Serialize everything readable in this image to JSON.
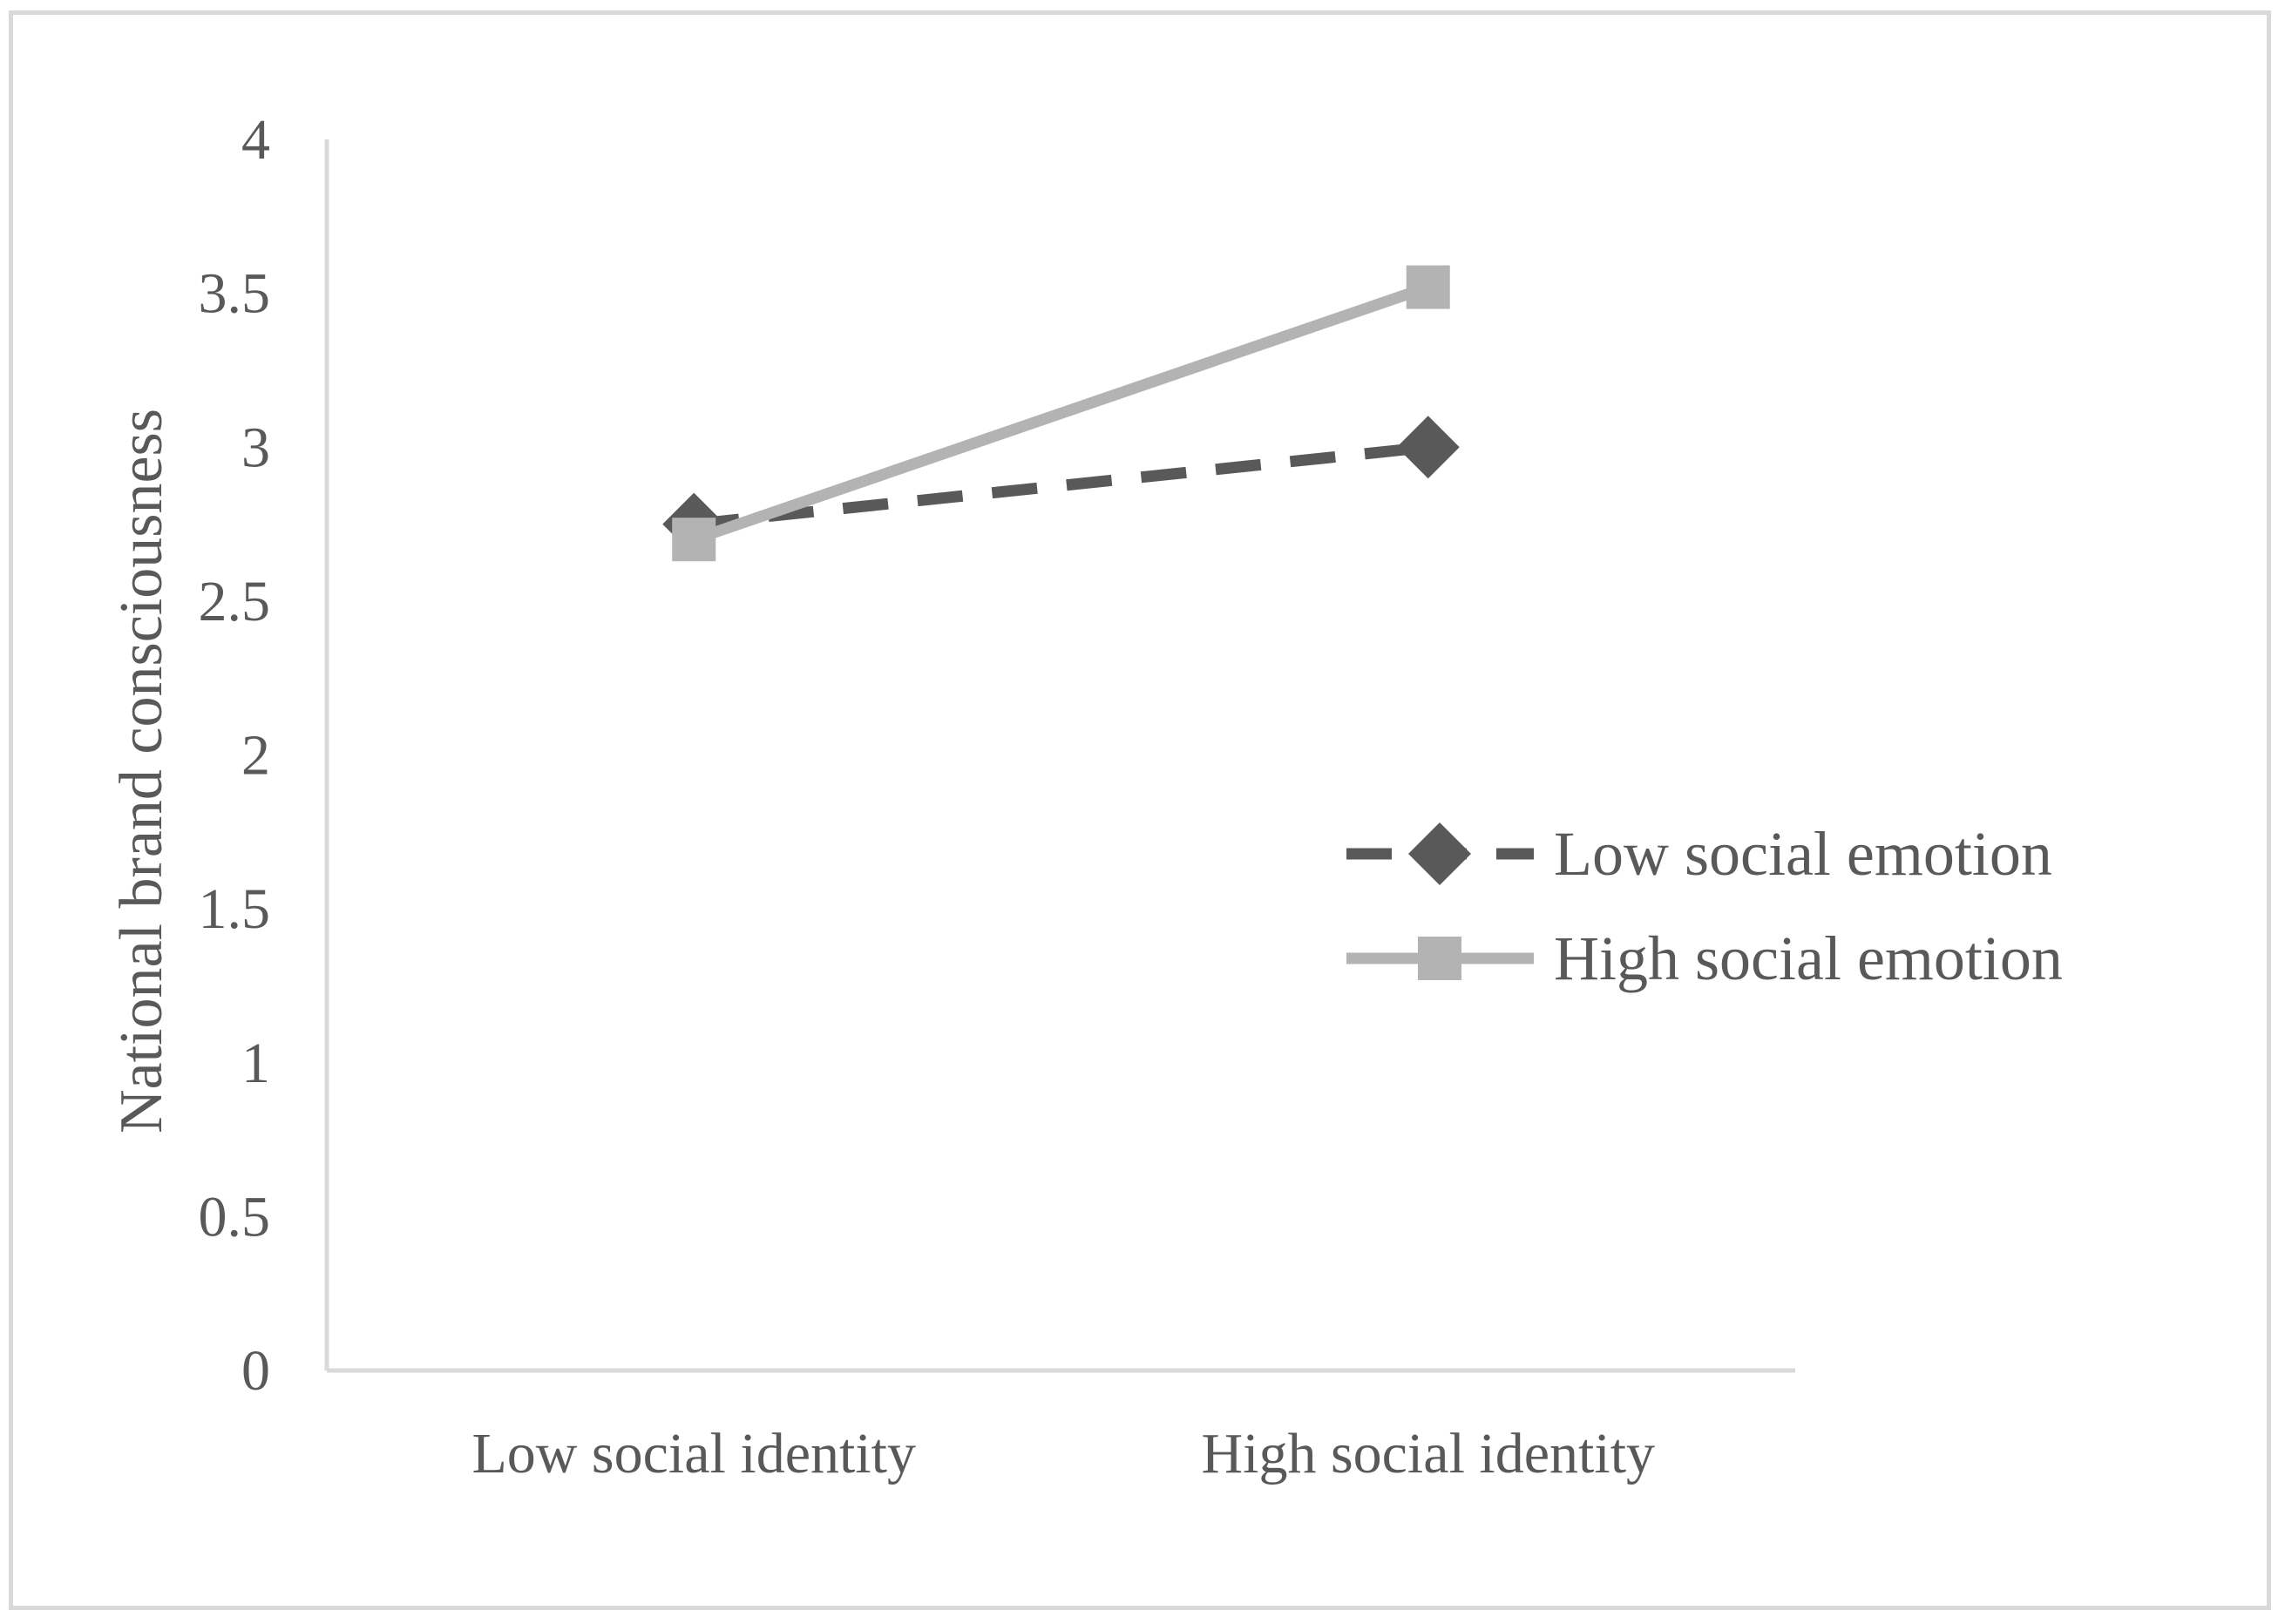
{
  "chart_data": {
    "type": "line",
    "categories": [
      "Low social identity",
      "High social identity"
    ],
    "ylabel": "National brand consciousness",
    "xlabel": "",
    "ylim": [
      0,
      4
    ],
    "yticks": [
      "0",
      "0.5",
      "1",
      "1.5",
      "2",
      "2.5",
      "3",
      "3.5",
      "4"
    ],
    "grid": false,
    "legend_position": "right",
    "series": [
      {
        "name": "Low social emotion",
        "values": [
          2.75,
          3.0
        ],
        "color": "#595959",
        "line_style": "dashed",
        "marker": "diamond"
      },
      {
        "name": "High social emotion",
        "values": [
          2.7,
          3.52
        ],
        "color": "#b3b3b3",
        "line_style": "solid",
        "marker": "square"
      }
    ]
  }
}
